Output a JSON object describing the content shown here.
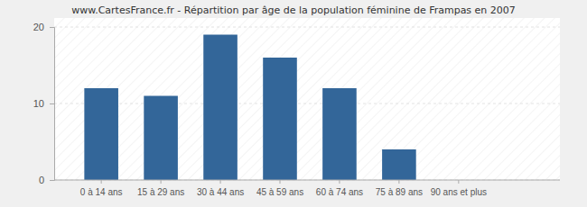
{
  "chart_data": {
    "type": "bar",
    "title": "www.CartesFrance.fr - Répartition par âge de la population féminine de Frampas en 2007",
    "categories": [
      "0 à 14 ans",
      "15 à 29 ans",
      "30 à 44 ans",
      "45 à 59 ans",
      "60 à 74 ans",
      "75 à 89 ans",
      "90 ans et plus"
    ],
    "values": [
      12,
      11,
      19,
      16,
      12,
      4,
      0
    ],
    "color": "#336699",
    "ylim": [
      0,
      20
    ],
    "yticks": [
      0,
      10,
      20
    ],
    "grid": true
  }
}
